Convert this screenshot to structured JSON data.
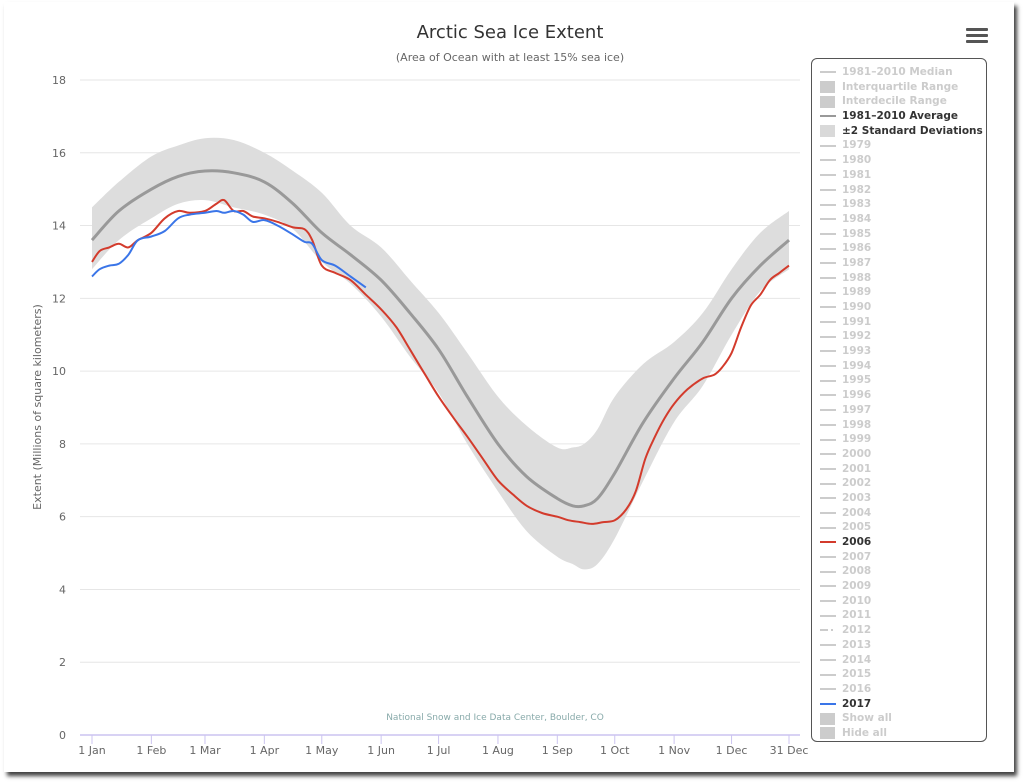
{
  "header": {
    "menu_icon": "hamburger-menu-icon"
  },
  "credit": "National Snow and Ice Data Center, Boulder, CO",
  "colors": {
    "average": "#999999",
    "std_band": "#dddddd",
    "y2006": "#d33b2c",
    "y2017": "#3a75e8",
    "inactive": "#cccccc",
    "axis": "#ccc4f0",
    "grid": "#e6e6e6"
  },
  "legend": {
    "items": [
      {
        "label": "1981–2010 Median",
        "symbol": "line",
        "active": false
      },
      {
        "label": "Interquartile Range",
        "symbol": "box",
        "active": false
      },
      {
        "label": "Interdecile Range",
        "symbol": "box",
        "active": false
      },
      {
        "label": "1981–2010 Average",
        "symbol": "line",
        "active": true,
        "color": "#999999"
      },
      {
        "label": "±2 Standard Deviations",
        "symbol": "box",
        "active": true,
        "color": "#d9d9d9"
      },
      {
        "label": "1979",
        "symbol": "line",
        "active": false
      },
      {
        "label": "1980",
        "symbol": "line",
        "active": false
      },
      {
        "label": "1981",
        "symbol": "line",
        "active": false
      },
      {
        "label": "1982",
        "symbol": "line",
        "active": false
      },
      {
        "label": "1983",
        "symbol": "line",
        "active": false
      },
      {
        "label": "1984",
        "symbol": "line",
        "active": false
      },
      {
        "label": "1985",
        "symbol": "line",
        "active": false
      },
      {
        "label": "1986",
        "symbol": "line",
        "active": false
      },
      {
        "label": "1987",
        "symbol": "line",
        "active": false
      },
      {
        "label": "1988",
        "symbol": "line",
        "active": false
      },
      {
        "label": "1989",
        "symbol": "line",
        "active": false
      },
      {
        "label": "1990",
        "symbol": "line",
        "active": false
      },
      {
        "label": "1991",
        "symbol": "line",
        "active": false
      },
      {
        "label": "1992",
        "symbol": "line",
        "active": false
      },
      {
        "label": "1993",
        "symbol": "line",
        "active": false
      },
      {
        "label": "1994",
        "symbol": "line",
        "active": false
      },
      {
        "label": "1995",
        "symbol": "line",
        "active": false
      },
      {
        "label": "1996",
        "symbol": "line",
        "active": false
      },
      {
        "label": "1997",
        "symbol": "line",
        "active": false
      },
      {
        "label": "1998",
        "symbol": "line",
        "active": false
      },
      {
        "label": "1999",
        "symbol": "line",
        "active": false
      },
      {
        "label": "2000",
        "symbol": "line",
        "active": false
      },
      {
        "label": "2001",
        "symbol": "line",
        "active": false
      },
      {
        "label": "2002",
        "symbol": "line",
        "active": false
      },
      {
        "label": "2003",
        "symbol": "line",
        "active": false
      },
      {
        "label": "2004",
        "symbol": "line",
        "active": false
      },
      {
        "label": "2005",
        "symbol": "line",
        "active": false
      },
      {
        "label": "2006",
        "symbol": "line",
        "active": true,
        "color": "#d33b2c"
      },
      {
        "label": "2007",
        "symbol": "line",
        "active": false
      },
      {
        "label": "2008",
        "symbol": "line",
        "active": false
      },
      {
        "label": "2009",
        "symbol": "line",
        "active": false
      },
      {
        "label": "2010",
        "symbol": "line",
        "active": false
      },
      {
        "label": "2011",
        "symbol": "line",
        "active": false
      },
      {
        "label": "2012",
        "symbol": "dash",
        "active": false
      },
      {
        "label": "2013",
        "symbol": "line",
        "active": false
      },
      {
        "label": "2014",
        "symbol": "line",
        "active": false
      },
      {
        "label": "2015",
        "symbol": "line",
        "active": false
      },
      {
        "label": "2016",
        "symbol": "line",
        "active": false
      },
      {
        "label": "2017",
        "symbol": "line",
        "active": true,
        "color": "#3a75e8"
      },
      {
        "label": "Show all",
        "symbol": "box",
        "active": false
      },
      {
        "label": "Hide all",
        "symbol": "box",
        "active": false
      }
    ]
  },
  "chart_data": {
    "type": "line",
    "title": "Arctic Sea Ice Extent",
    "subtitle": "(Area of Ocean with at least 15% sea ice)",
    "xlabel": "",
    "ylabel": "Extent (Millions of square kilometers)",
    "ylim": [
      0,
      18
    ],
    "yticks": [
      0,
      2,
      4,
      6,
      8,
      10,
      12,
      14,
      16,
      18
    ],
    "xlim_day_of_year": [
      1,
      365
    ],
    "xticks": [
      {
        "label": "1 Jan",
        "day": 1
      },
      {
        "label": "1 Feb",
        "day": 32
      },
      {
        "label": "1 Mar",
        "day": 60
      },
      {
        "label": "1 Apr",
        "day": 91
      },
      {
        "label": "1 May",
        "day": 121
      },
      {
        "label": "1 Jun",
        "day": 152
      },
      {
        "label": "1 Jul",
        "day": 182
      },
      {
        "label": "1 Aug",
        "day": 213
      },
      {
        "label": "1 Sep",
        "day": 244
      },
      {
        "label": "1 Oct",
        "day": 274
      },
      {
        "label": "1 Nov",
        "day": 305
      },
      {
        "label": "1 Dec",
        "day": 335
      },
      {
        "label": "31 Dec",
        "day": 365
      }
    ],
    "grid": true,
    "legend_position": "right",
    "x_unit": "day of year",
    "series": [
      {
        "name": "±2 Standard Deviations",
        "kind": "band",
        "x": [
          1,
          15,
          32,
          46,
          60,
          75,
          91,
          106,
          121,
          136,
          152,
          167,
          182,
          197,
          213,
          228,
          244,
          252,
          258,
          265,
          274,
          289,
          305,
          320,
          335,
          350,
          365
        ],
        "upper": [
          14.5,
          15.2,
          15.9,
          16.2,
          16.4,
          16.35,
          16.0,
          15.5,
          14.9,
          14.0,
          13.4,
          12.5,
          11.6,
          10.5,
          9.3,
          8.5,
          7.9,
          7.9,
          8.0,
          8.4,
          9.3,
          10.2,
          10.8,
          11.6,
          12.8,
          13.8,
          14.4
        ],
        "lower": [
          12.8,
          13.6,
          14.2,
          14.6,
          14.7,
          14.5,
          14.3,
          13.9,
          13.0,
          12.4,
          11.5,
          10.4,
          9.4,
          8.0,
          6.7,
          5.6,
          4.9,
          4.7,
          4.55,
          4.7,
          5.4,
          7.0,
          8.6,
          9.6,
          11.0,
          12.2,
          12.8
        ]
      },
      {
        "name": "1981–2010 Average",
        "x": [
          1,
          15,
          32,
          46,
          60,
          75,
          91,
          106,
          121,
          136,
          152,
          167,
          182,
          197,
          213,
          228,
          244,
          252,
          258,
          265,
          274,
          289,
          305,
          320,
          335,
          350,
          365
        ],
        "y": [
          13.6,
          14.4,
          15.0,
          15.35,
          15.5,
          15.45,
          15.2,
          14.6,
          13.8,
          13.2,
          12.5,
          11.6,
          10.6,
          9.3,
          8.0,
          7.1,
          6.5,
          6.3,
          6.3,
          6.5,
          7.2,
          8.6,
          9.8,
          10.8,
          12.0,
          12.9,
          13.6
        ]
      },
      {
        "name": "2006",
        "x": [
          1,
          5,
          10,
          15,
          20,
          25,
          32,
          39,
          46,
          52,
          60,
          66,
          70,
          75,
          80,
          85,
          91,
          98,
          106,
          112,
          116,
          121,
          128,
          136,
          144,
          152,
          160,
          167,
          175,
          182,
          190,
          197,
          205,
          213,
          221,
          228,
          236,
          244,
          250,
          256,
          262,
          268,
          274,
          280,
          285,
          290,
          295,
          300,
          305,
          312,
          320,
          326,
          330,
          335,
          340,
          345,
          350,
          355,
          360,
          365
        ],
        "y": [
          13.0,
          13.3,
          13.4,
          13.5,
          13.4,
          13.6,
          13.8,
          14.2,
          14.4,
          14.35,
          14.4,
          14.6,
          14.7,
          14.4,
          14.4,
          14.25,
          14.2,
          14.1,
          13.95,
          13.9,
          13.6,
          12.9,
          12.7,
          12.5,
          12.1,
          11.7,
          11.2,
          10.6,
          9.9,
          9.3,
          8.7,
          8.2,
          7.6,
          7.0,
          6.6,
          6.3,
          6.1,
          6.0,
          5.9,
          5.85,
          5.8,
          5.85,
          5.9,
          6.2,
          6.7,
          7.6,
          8.2,
          8.7,
          9.1,
          9.5,
          9.8,
          9.9,
          10.1,
          10.5,
          11.2,
          11.8,
          12.1,
          12.5,
          12.7,
          12.9
        ]
      },
      {
        "name": "2017",
        "x": [
          1,
          5,
          10,
          15,
          20,
          25,
          32,
          39,
          46,
          52,
          60,
          66,
          70,
          75,
          80,
          85,
          91,
          98,
          106,
          112,
          116,
          121,
          128,
          136,
          144
        ],
        "y": [
          12.6,
          12.8,
          12.9,
          12.95,
          13.2,
          13.6,
          13.7,
          13.85,
          14.2,
          14.3,
          14.35,
          14.4,
          14.35,
          14.4,
          14.3,
          14.1,
          14.15,
          14.0,
          13.75,
          13.55,
          13.5,
          13.05,
          12.9,
          12.6,
          12.3
        ]
      }
    ]
  }
}
